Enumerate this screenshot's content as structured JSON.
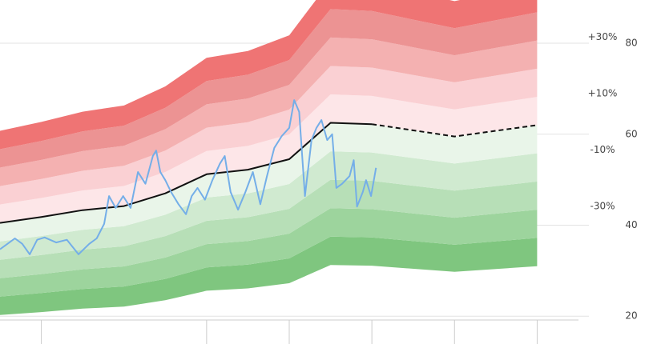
{
  "chart_data": {
    "type": "valuation-band",
    "xlim": [
      -0.5,
      6.5
    ],
    "xticks": [
      0,
      2,
      3,
      4,
      5,
      6
    ],
    "ylim": [
      17.4,
      89.5
    ],
    "yticks": [
      20,
      40,
      60,
      80
    ],
    "grid": true,
    "bands": [
      -50,
      -40,
      -30,
      -20,
      -10,
      0,
      10,
      20,
      30,
      40,
      50
    ],
    "band_colors": [
      "#7fc67f",
      "#9dd49d",
      "#b7dfb7",
      "#d0ead0",
      "#e9f5e9",
      "#fde6e8",
      "#fad0d3",
      "#f4b1b1",
      "#ec9393",
      "#ef7474"
    ],
    "band_labels": [
      {
        "value": 30,
        "label": "+30%"
      },
      {
        "value": 10,
        "label": "+10%"
      },
      {
        "value": -10,
        "label": "-10%"
      },
      {
        "value": -30,
        "label": "-30%"
      }
    ],
    "fair_value": {
      "color": "#111111",
      "x": [
        -0.5,
        0,
        0.5,
        1,
        1.5,
        2,
        2.5,
        3,
        3.5,
        4
      ],
      "values": [
        40.5,
        41.8,
        43.3,
        44.2,
        47.0,
        51.2,
        52.2,
        54.5,
        62.5,
        62.2
      ]
    },
    "projection": {
      "color": "#111111",
      "dashed": true,
      "x": [
        4,
        5,
        6
      ],
      "values": [
        62.2,
        59.5,
        62.0
      ]
    },
    "price": {
      "color": "#74aee8",
      "x": [
        -0.5,
        -0.41,
        -0.32,
        -0.23,
        -0.14,
        -0.05,
        0.04,
        0.18,
        0.31,
        0.45,
        0.58,
        0.67,
        0.76,
        0.82,
        0.9,
        0.99,
        1.08,
        1.17,
        1.26,
        1.35,
        1.39,
        1.44,
        1.5,
        1.57,
        1.66,
        1.75,
        1.82,
        1.89,
        1.98,
        2.07,
        2.16,
        2.22,
        2.29,
        2.38,
        2.47,
        2.56,
        2.65,
        2.73,
        2.82,
        2.91,
        3.0,
        3.06,
        3.12,
        3.19,
        3.27,
        3.33,
        3.39,
        3.46,
        3.52,
        3.57,
        3.64,
        3.73,
        3.78,
        3.82,
        3.89,
        3.93,
        3.99,
        4.05
      ],
      "values": [
        34.7,
        35.9,
        37.1,
        35.9,
        33.6,
        36.8,
        37.3,
        36.2,
        36.8,
        33.6,
        35.9,
        37.1,
        40.3,
        46.4,
        43.8,
        46.4,
        43.8,
        51.7,
        49.1,
        55.2,
        56.4,
        51.7,
        49.9,
        47.3,
        44.6,
        42.4,
        46.4,
        48.2,
        45.6,
        49.9,
        53.5,
        55.2,
        47.3,
        43.4,
        47.3,
        51.7,
        44.6,
        50.8,
        57.0,
        59.6,
        61.4,
        67.5,
        64.9,
        46.4,
        58.7,
        61.4,
        63.1,
        58.7,
        60.0,
        48.2,
        49.1,
        50.8,
        54.3,
        44.1,
        47.3,
        49.9,
        46.4,
        52.6
      ]
    }
  }
}
